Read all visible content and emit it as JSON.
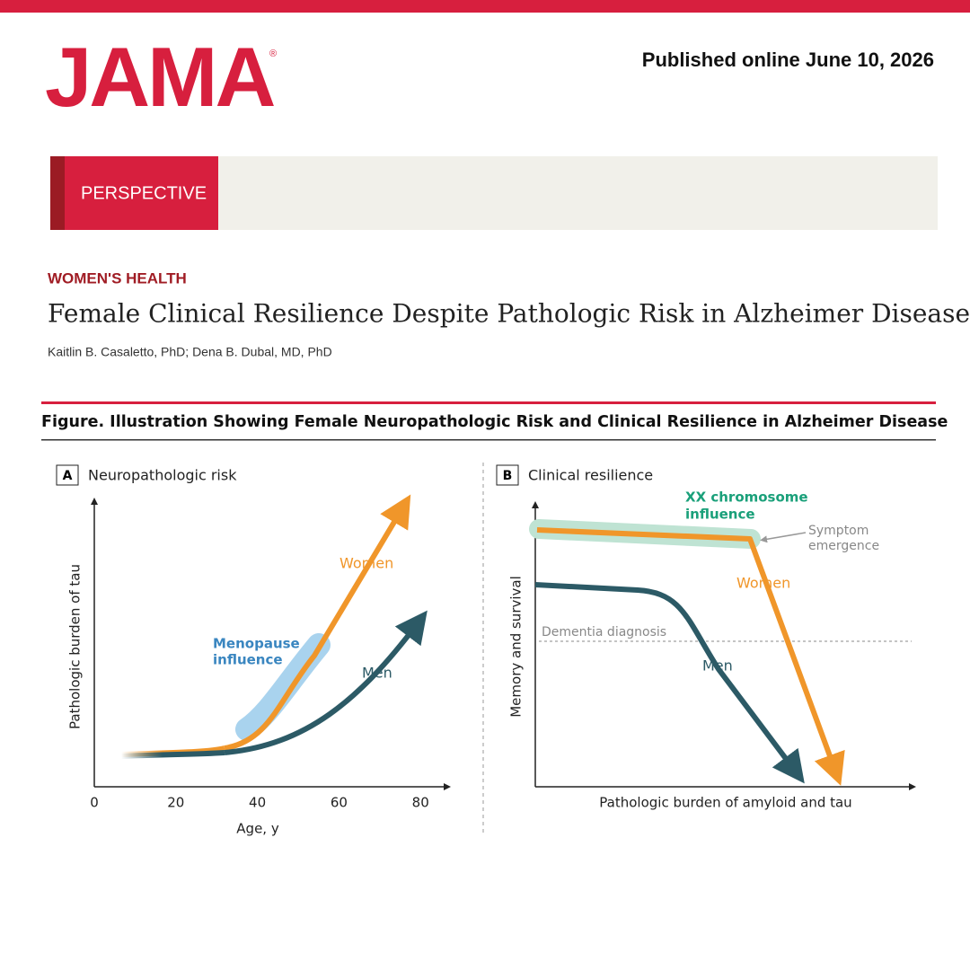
{
  "header": {
    "logo": "JAMA",
    "registered": "®",
    "published": "Published online June 10, 2026"
  },
  "banner": {
    "label": "PERSPECTIVE"
  },
  "article": {
    "section": "WOMEN'S HEALTH",
    "title": "Female Clinical Resilience Despite Pathologic Risk in Alzheimer Disease",
    "authors": "Kaitlin B. Casaletto, PhD; Dena B. Dubal, MD, PhD"
  },
  "figure": {
    "caption": "Figure. Illustration Showing Female Neuropathologic Risk and Clinical Resilience in Alzheimer Disease",
    "panels": [
      {
        "letter": "A",
        "title": "Neuropathologic risk",
        "ylabel": "Pathologic burden of tau",
        "xlabel": "Age, y",
        "xlim": [
          0,
          87
        ],
        "xticks": [
          0,
          20,
          40,
          60,
          80
        ],
        "women": "Women",
        "men": "Men",
        "influence": [
          "Menopause",
          "influence"
        ]
      },
      {
        "letter": "B",
        "title": "Clinical resilience",
        "ylabel": "Memory and survival",
        "xlabel": "Pathologic burden of amyloid and tau",
        "women": "Women",
        "men": "Men",
        "influence": [
          "XX chromosome",
          "influence"
        ],
        "symptom": [
          "Symptom",
          "emergence"
        ],
        "threshold": "Dementia diagnosis"
      }
    ]
  }
}
